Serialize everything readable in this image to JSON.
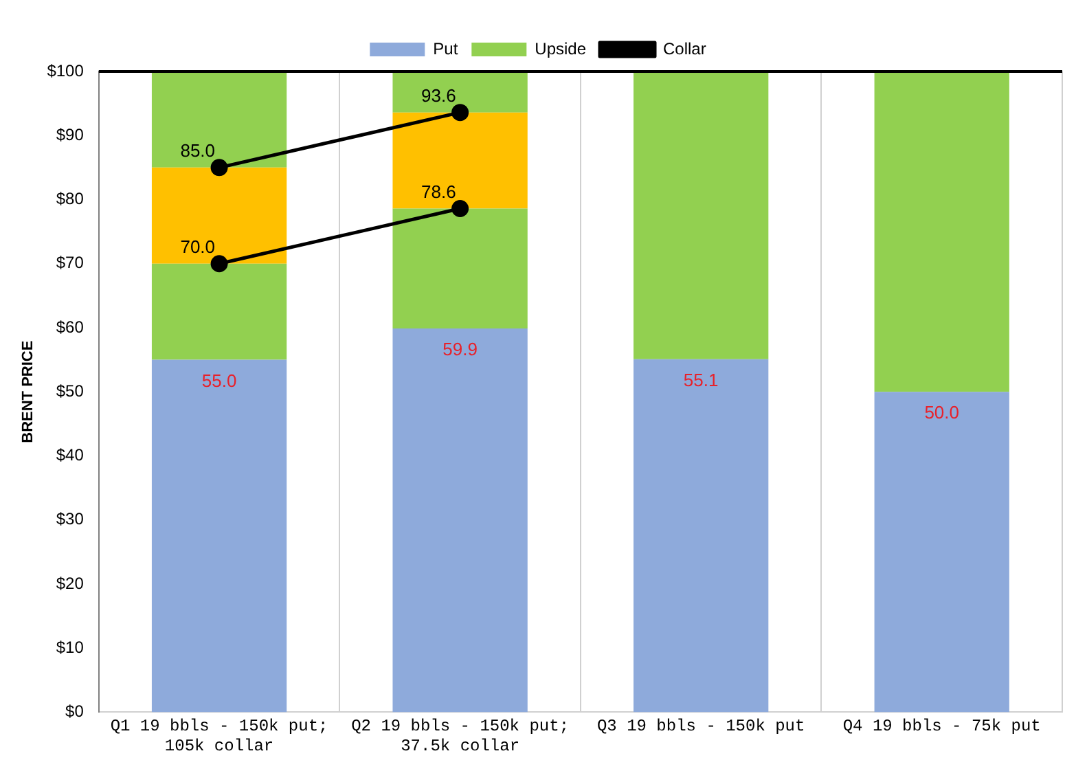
{
  "chart_data": {
    "type": "bar",
    "stacked": true,
    "ylabel": "BRENT PRICE",
    "categories": [
      "Q1 19 bbls - 150k put; 105k collar",
      "Q2 19 bbls - 150k put; 37.5k collar",
      "Q3 19 bbls - 150k put",
      "Q4 19 bbls - 75k put"
    ],
    "series": [
      {
        "name": "Put",
        "color": "#8eaadb",
        "values": [
          55.0,
          59.9,
          55.1,
          50.0
        ],
        "value_labels": [
          "55.0",
          "59.9",
          "55.1",
          "50.0"
        ]
      },
      {
        "name": "Upside",
        "color": "#92d050",
        "values": [
          15,
          18.7,
          44.9,
          50
        ]
      },
      {
        "color": "#ffc000",
        "values": [
          15,
          15,
          null,
          null
        ]
      },
      {
        "color": "#92d050",
        "values": [
          15,
          6.4,
          null,
          null
        ]
      },
      {
        "name": "Collar",
        "type": "line",
        "color": "#000000",
        "values": [
          85.0,
          93.6,
          null,
          null
        ],
        "value_labels": [
          "85.0",
          "93.6",
          null,
          null
        ]
      },
      {
        "type": "line",
        "color": "#000000",
        "values": [
          70.0,
          78.6,
          null,
          null
        ],
        "value_labels": [
          "70.0",
          "78.6",
          null,
          null
        ]
      }
    ],
    "ylim": [
      0,
      100
    ],
    "yticks": [
      {
        "value": 0,
        "label": "$0"
      },
      {
        "value": 10,
        "label": "$10"
      },
      {
        "value": 20,
        "label": "$20"
      },
      {
        "value": 30,
        "label": "$30"
      },
      {
        "value": 40,
        "label": "$40"
      },
      {
        "value": 50,
        "label": "$50"
      },
      {
        "value": 60,
        "label": "$60"
      },
      {
        "value": 70,
        "label": "$70"
      },
      {
        "value": 80,
        "label": "$80"
      },
      {
        "value": 90,
        "label": "$90"
      },
      {
        "value": 100,
        "label": "$100"
      }
    ],
    "grid": "x",
    "legend": "top",
    "marker": "circle",
    "line_style": "solid"
  }
}
